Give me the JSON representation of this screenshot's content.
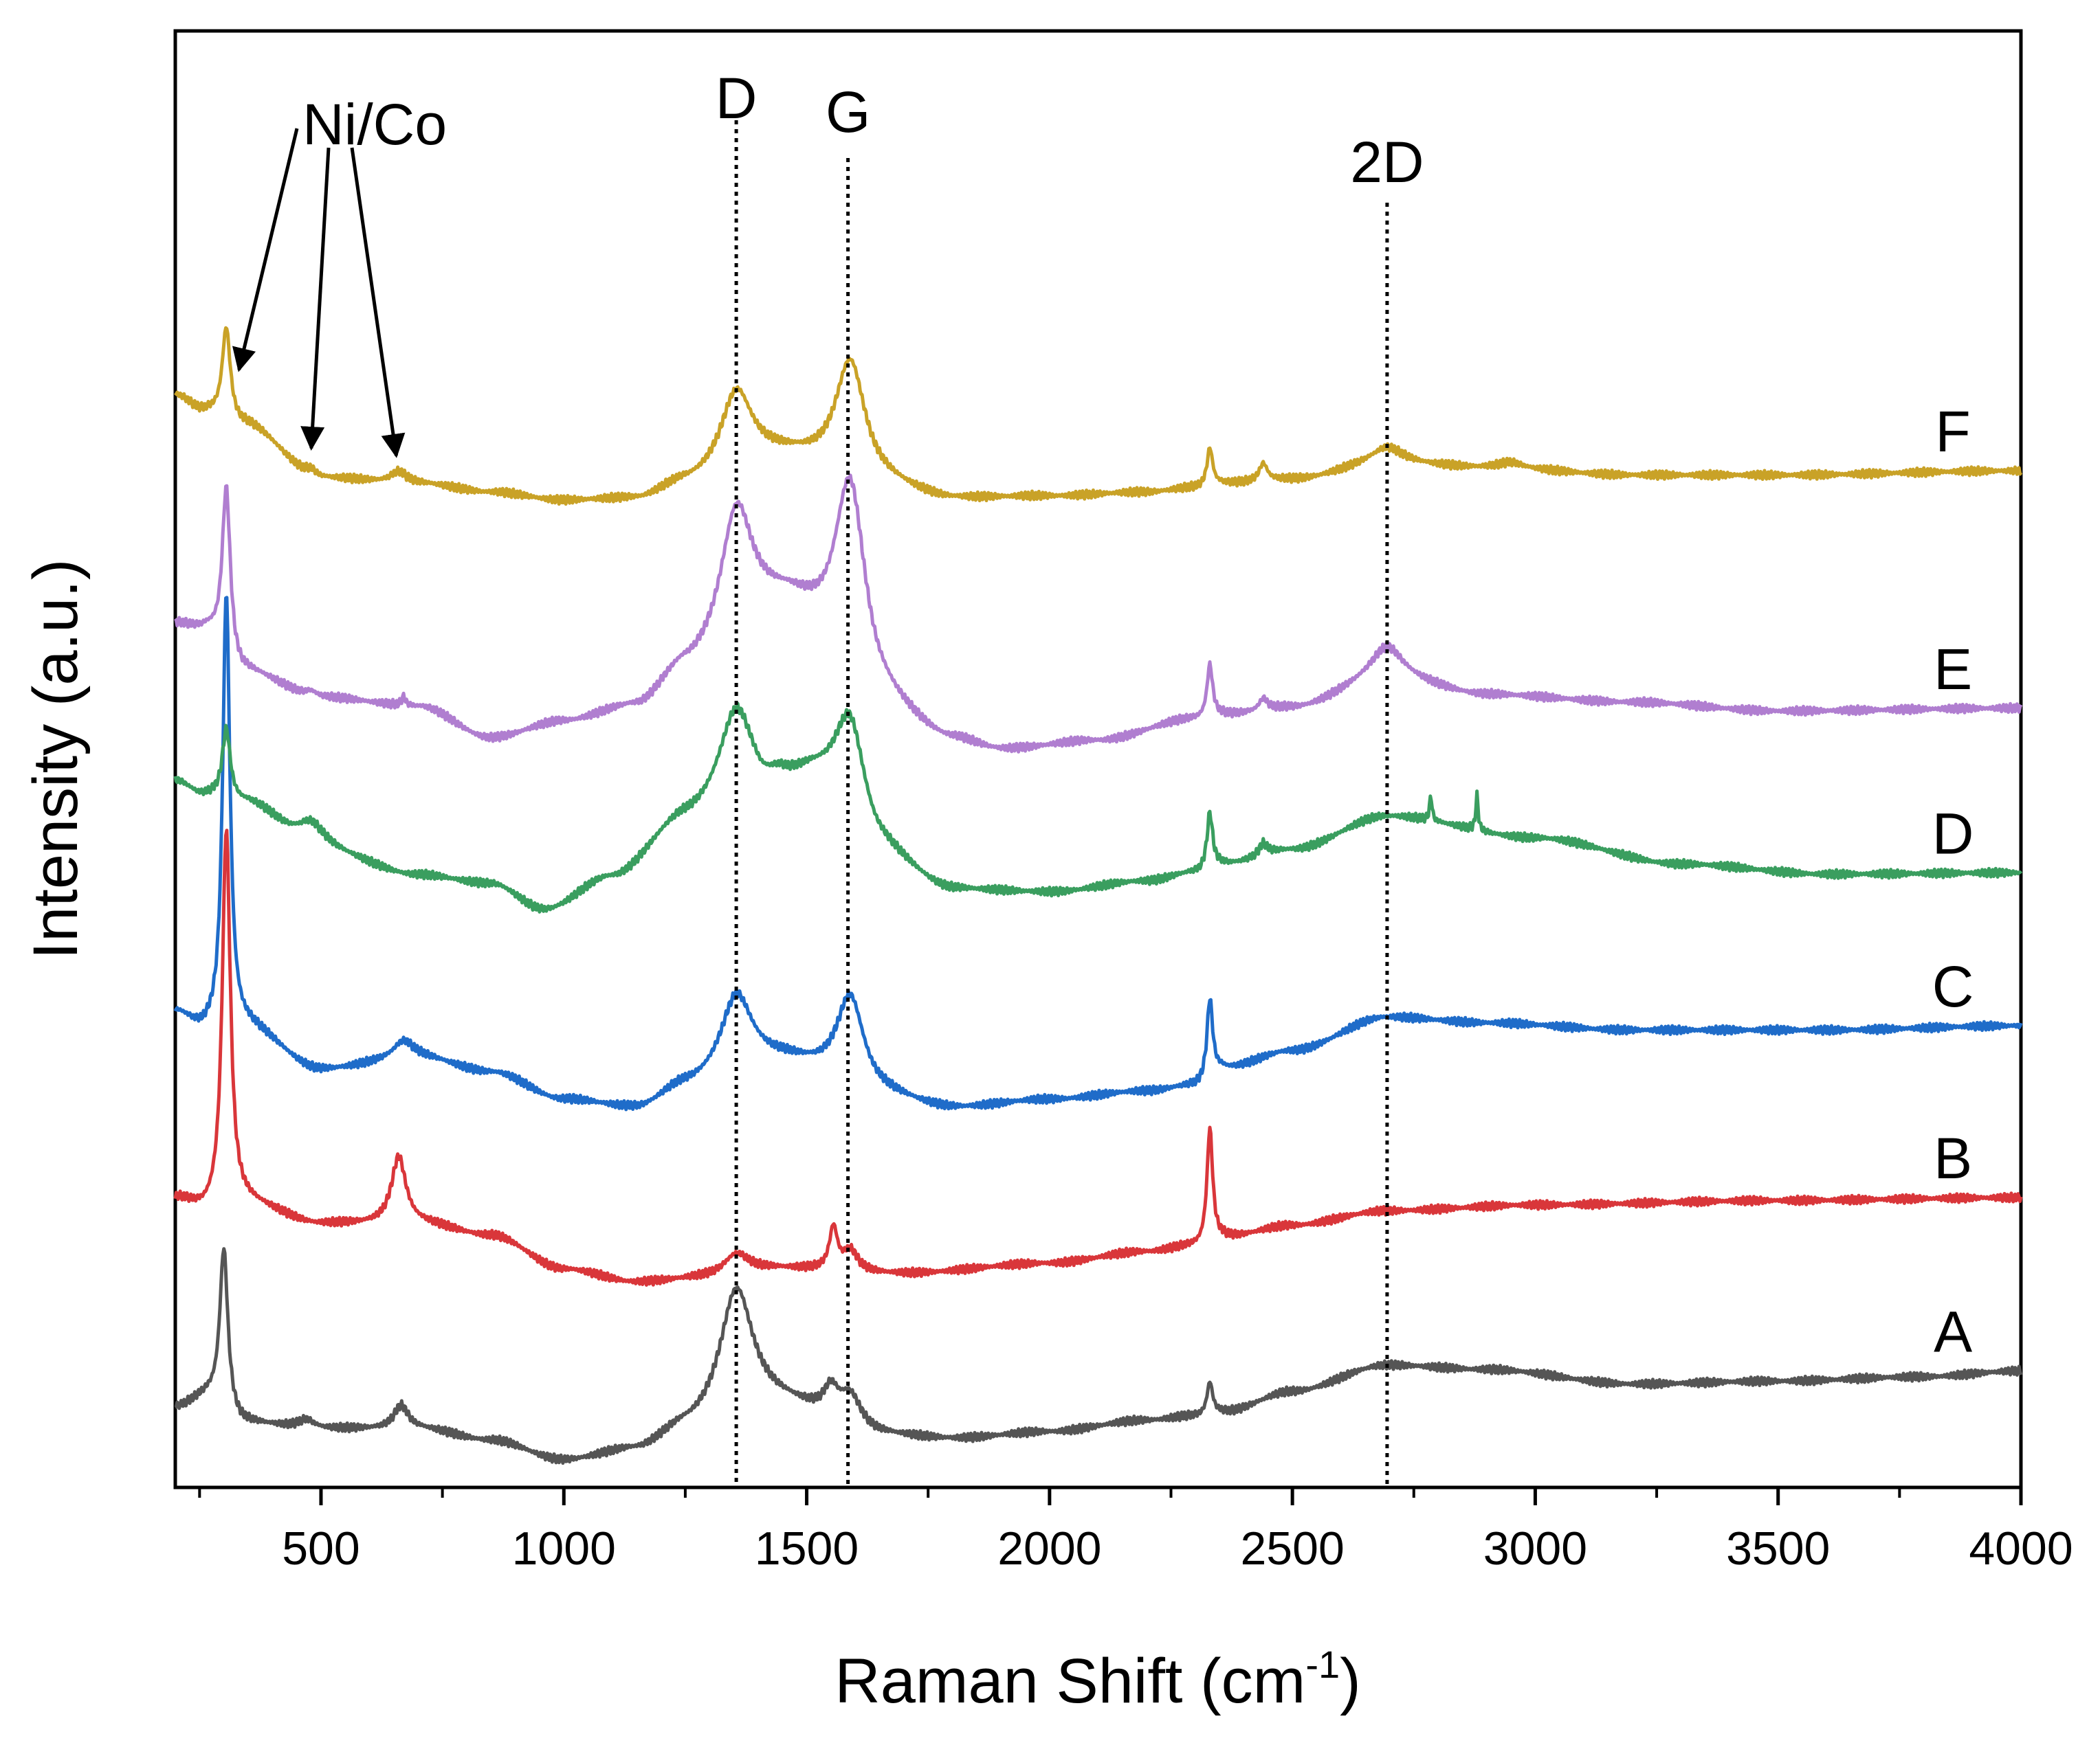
{
  "chart_data": {
    "type": "line",
    "title": "",
    "xlabel": "Raman Shift (cm",
    "xlabel_sup": "-1",
    "xlabel_close": ")",
    "ylabel": "Intensity (a.u.)",
    "xlim": [
      200,
      4000
    ],
    "ylim": [
      0,
      100
    ],
    "x_ticks": [
      500,
      1000,
      1500,
      2000,
      2500,
      3000,
      3500,
      4000
    ],
    "x_tick_labels": [
      "500",
      "1000",
      "1500",
      "2000",
      "2500",
      "3000",
      "3500",
      "4000"
    ],
    "y_ticks_shown": false,
    "grid": false,
    "reference_lines": [
      {
        "label": "D",
        "x": 1355
      },
      {
        "label": "G",
        "x": 1585
      },
      {
        "label": "2D",
        "x": 2695
      }
    ],
    "annotations": [
      {
        "text": "Ni/Co",
        "arrow_targets": [
          300,
          480,
          655
        ]
      }
    ],
    "series": [
      {
        "name": "A",
        "color": "#555555",
        "offset": 5.5,
        "baseline": [
          [
            200,
            5.5
          ],
          [
            265,
            6.2
          ],
          [
            340,
            4.4
          ],
          [
            500,
            4.0
          ],
          [
            700,
            4.0
          ],
          [
            850,
            3.2
          ],
          [
            1000,
            1.8
          ],
          [
            1150,
            2.5
          ],
          [
            1250,
            3.8
          ],
          [
            1450,
            5.4
          ],
          [
            1650,
            3.5
          ],
          [
            1800,
            3.3
          ],
          [
            2000,
            3.8
          ],
          [
            2200,
            4.6
          ],
          [
            2300,
            4.9
          ],
          [
            2360,
            5.2
          ],
          [
            2500,
            6.6
          ],
          [
            2695,
            8.4
          ],
          [
            2900,
            8.1
          ],
          [
            3200,
            7.1
          ],
          [
            3500,
            7.3
          ],
          [
            3800,
            7.6
          ],
          [
            4000,
            8.0
          ]
        ],
        "peaks": [
          {
            "x": 300,
            "h": 11.0,
            "w": 10
          },
          {
            "x": 470,
            "h": 0.6,
            "w": 20
          },
          {
            "x": 665,
            "h": 1.6,
            "w": 18
          },
          {
            "x": 1355,
            "h": 9.0,
            "w": 42
          },
          {
            "x": 1550,
            "h": 1.8,
            "w": 18
          },
          {
            "x": 1590,
            "h": 2.2,
            "w": 28
          },
          {
            "x": 2330,
            "h": 2.2,
            "w": 7
          }
        ]
      },
      {
        "name": "B",
        "color": "#d9363a",
        "offset": 19.8,
        "baseline": [
          [
            200,
            19.8
          ],
          [
            265,
            19.0
          ],
          [
            340,
            19.5
          ],
          [
            500,
            18.1
          ],
          [
            700,
            18.1
          ],
          [
            850,
            17.3
          ],
          [
            1000,
            15.0
          ],
          [
            1150,
            14.1
          ],
          [
            1300,
            14.4
          ],
          [
            1450,
            15.0
          ],
          [
            1700,
            14.7
          ],
          [
            2000,
            15.4
          ],
          [
            2200,
            16.2
          ],
          [
            2300,
            16.6
          ],
          [
            2360,
            17.2
          ],
          [
            2500,
            18.0
          ],
          [
            2695,
            19.0
          ],
          [
            3000,
            19.4
          ],
          [
            3500,
            19.7
          ],
          [
            4000,
            19.9
          ]
        ],
        "peaks": [
          {
            "x": 305,
            "h": 26.0,
            "w": 10
          },
          {
            "x": 660,
            "h": 4.6,
            "w": 18
          },
          {
            "x": 1355,
            "h": 1.5,
            "w": 32
          },
          {
            "x": 1555,
            "h": 2.9,
            "w": 10
          },
          {
            "x": 1590,
            "h": 1.4,
            "w": 18
          },
          {
            "x": 2330,
            "h": 7.8,
            "w": 7
          }
        ]
      },
      {
        "name": "C",
        "color": "#1f6cc9",
        "offset": 32.6,
        "baseline": [
          [
            200,
            32.6
          ],
          [
            260,
            31.4
          ],
          [
            340,
            31.6
          ],
          [
            500,
            28.7
          ],
          [
            700,
            29.5
          ],
          [
            850,
            28.5
          ],
          [
            1000,
            26.6
          ],
          [
            1150,
            26.0
          ],
          [
            1250,
            27.4
          ],
          [
            1450,
            29.0
          ],
          [
            1650,
            26.7
          ],
          [
            1800,
            26.0
          ],
          [
            2000,
            26.6
          ],
          [
            2200,
            27.2
          ],
          [
            2300,
            27.6
          ],
          [
            2360,
            28.8
          ],
          [
            2500,
            30.0
          ],
          [
            2695,
            32.3
          ],
          [
            2900,
            31.9
          ],
          [
            3200,
            31.4
          ],
          [
            3600,
            31.4
          ],
          [
            4000,
            31.7
          ]
        ],
        "peaks": [
          {
            "x": 305,
            "h": 30.0,
            "w": 9
          },
          {
            "x": 670,
            "h": 1.2,
            "w": 25
          },
          {
            "x": 1355,
            "h": 5.5,
            "w": 40
          },
          {
            "x": 1590,
            "h": 6.5,
            "w": 35
          },
          {
            "x": 2330,
            "h": 5.4,
            "w": 7
          }
        ]
      },
      {
        "name": "D",
        "color": "#3a9e5f",
        "offset": 48.5,
        "baseline": [
          [
            200,
            48.5
          ],
          [
            260,
            47.5
          ],
          [
            340,
            47.0
          ],
          [
            500,
            43.6
          ],
          [
            700,
            42.0
          ],
          [
            850,
            41.4
          ],
          [
            960,
            39.6
          ],
          [
            1100,
            41.8
          ],
          [
            1250,
            45.5
          ],
          [
            1400,
            46.5
          ],
          [
            1450,
            47.8
          ],
          [
            1500,
            48.0
          ],
          [
            1650,
            43.0
          ],
          [
            1800,
            40.9
          ],
          [
            2000,
            40.8
          ],
          [
            2200,
            41.6
          ],
          [
            2300,
            42.2
          ],
          [
            2360,
            42.8
          ],
          [
            2500,
            43.8
          ],
          [
            2695,
            46.1
          ],
          [
            3000,
            44.6
          ],
          [
            3300,
            42.8
          ],
          [
            3600,
            42.1
          ],
          [
            4000,
            42.2
          ]
        ],
        "peaks": [
          {
            "x": 305,
            "h": 4.8,
            "w": 10
          },
          {
            "x": 480,
            "h": 2.0,
            "w": 35
          },
          {
            "x": 1355,
            "h": 7.0,
            "w": 45
          },
          {
            "x": 1590,
            "h": 8.0,
            "w": 40
          },
          {
            "x": 2330,
            "h": 3.8,
            "w": 7
          },
          {
            "x": 2440,
            "h": 0.8,
            "w": 10
          },
          {
            "x": 2785,
            "h": 1.7,
            "w": 3
          },
          {
            "x": 2880,
            "h": 2.4,
            "w": 3
          }
        ]
      },
      {
        "name": "E",
        "color": "#b07ed0",
        "offset": 59.3,
        "baseline": [
          [
            200,
            59.3
          ],
          [
            260,
            58.9
          ],
          [
            340,
            56.0
          ],
          [
            500,
            54.2
          ],
          [
            700,
            53.6
          ],
          [
            850,
            51.4
          ],
          [
            1000,
            52.5
          ],
          [
            1150,
            53.5
          ],
          [
            1250,
            56.0
          ],
          [
            1450,
            60.0
          ],
          [
            1650,
            53.0
          ],
          [
            1800,
            51.1
          ],
          [
            1900,
            50.5
          ],
          [
            2100,
            51.2
          ],
          [
            2300,
            52.7
          ],
          [
            2360,
            53.0
          ],
          [
            2500,
            53.5
          ],
          [
            2695,
            55.5
          ],
          [
            2900,
            54.4
          ],
          [
            3200,
            53.9
          ],
          [
            3500,
            53.3
          ],
          [
            4000,
            53.5
          ]
        ],
        "peaks": [
          {
            "x": 305,
            "h": 11.5,
            "w": 10
          },
          {
            "x": 480,
            "h": 0.4,
            "w": 15
          },
          {
            "x": 670,
            "h": 0.6,
            "w": 5
          },
          {
            "x": 1355,
            "h": 9.0,
            "w": 40
          },
          {
            "x": 1590,
            "h": 14.5,
            "w": 40
          },
          {
            "x": 2330,
            "h": 3.6,
            "w": 7
          },
          {
            "x": 2440,
            "h": 0.8,
            "w": 10
          },
          {
            "x": 2695,
            "h": 2.2,
            "w": 40
          }
        ]
      },
      {
        "name": "F",
        "color": "#c9a227",
        "offset": 75.0,
        "baseline": [
          [
            200,
            75.0
          ],
          [
            260,
            73.9
          ],
          [
            340,
            73.0
          ],
          [
            500,
            69.3
          ],
          [
            700,
            68.9
          ],
          [
            850,
            68.3
          ],
          [
            1000,
            67.7
          ],
          [
            1150,
            67.8
          ],
          [
            1250,
            68.8
          ],
          [
            1450,
            70.5
          ],
          [
            1650,
            68.6
          ],
          [
            1800,
            67.8
          ],
          [
            2000,
            68.0
          ],
          [
            2200,
            68.3
          ],
          [
            2300,
            68.6
          ],
          [
            2360,
            68.9
          ],
          [
            2500,
            69.2
          ],
          [
            2695,
            70.3
          ],
          [
            2900,
            70.0
          ],
          [
            3200,
            69.5
          ],
          [
            3500,
            69.5
          ],
          [
            4000,
            69.8
          ]
        ],
        "peaks": [
          {
            "x": 305,
            "h": 6.3,
            "w": 10
          },
          {
            "x": 480,
            "h": 0.5,
            "w": 15
          },
          {
            "x": 660,
            "h": 0.8,
            "w": 20
          },
          {
            "x": 1355,
            "h": 5.5,
            "w": 40
          },
          {
            "x": 1590,
            "h": 8.3,
            "w": 38
          },
          {
            "x": 2330,
            "h": 2.6,
            "w": 7
          },
          {
            "x": 2440,
            "h": 1.2,
            "w": 10
          },
          {
            "x": 2695,
            "h": 1.1,
            "w": 40
          },
          {
            "x": 2950,
            "h": 0.4,
            "w": 30
          }
        ]
      }
    ]
  }
}
